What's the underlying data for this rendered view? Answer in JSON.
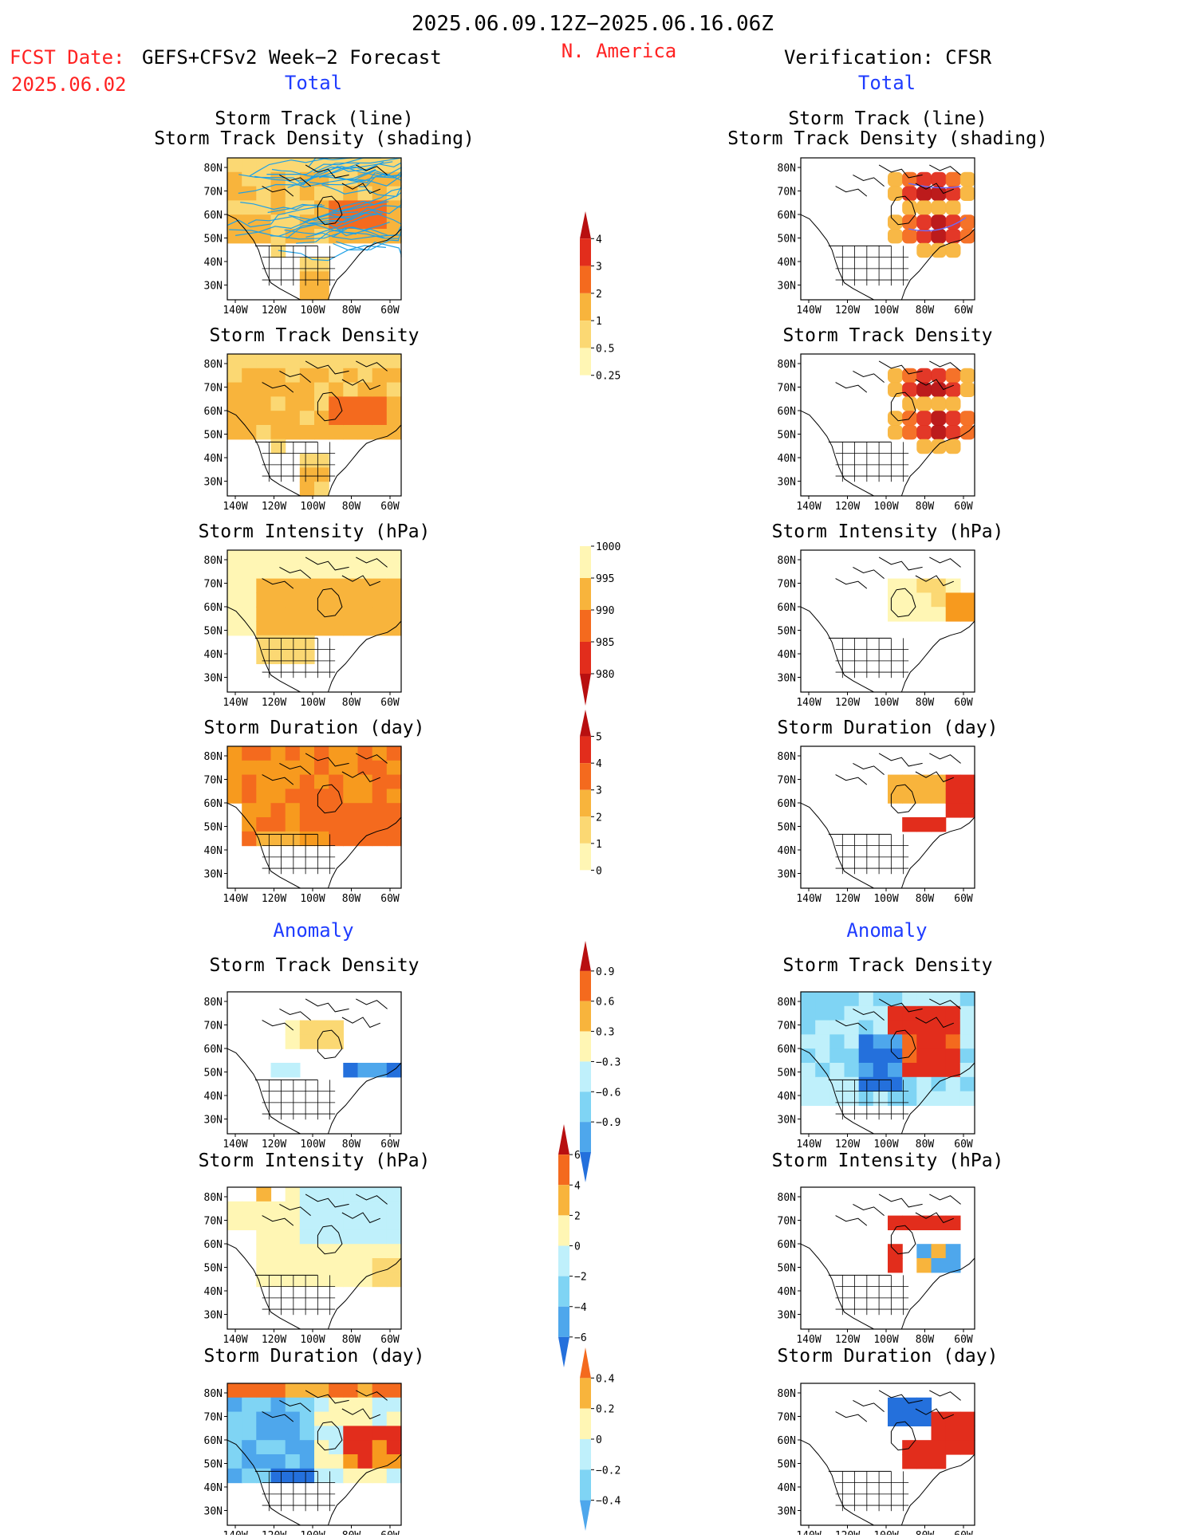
{
  "header": {
    "date_range": "2025.06.09.12Z−2025.06.16.06Z",
    "fcst_label": "FCST Date:",
    "fcst_date": "2025.06.02",
    "forecast_name": "GEFS+CFSv2 Week−2 Forecast",
    "region": "N. America",
    "verification": "Verification: CFSR"
  },
  "colors": {
    "red_text": "#ff2222",
    "blue_text": "#1f3cff",
    "track_line": "#1ea0e6",
    "warm": [
      "#fff6b4",
      "#fbd873",
      "#f8b43c",
      "#f79a1e",
      "#f46a1e",
      "#e22d1c",
      "#b80f10"
    ],
    "cool": [
      "#bff0fb",
      "#7fd4f4",
      "#4ea7ec",
      "#2470dc",
      "#1848b8"
    ]
  },
  "columns": [
    {
      "id": "forecast",
      "total_title": "Total",
      "anomaly_title": "Anomaly",
      "panels": [
        {
          "title1": "Storm Track (line)",
          "title2": "Storm Track Density (shading)",
          "kind": "track"
        },
        {
          "title1": "Storm Track Density",
          "title2": "",
          "kind": "density"
        },
        {
          "title1": "Storm Intensity (hPa)",
          "title2": "",
          "kind": "intensity"
        },
        {
          "title1": "Storm Duration (day)",
          "title2": "",
          "kind": "duration"
        },
        {
          "title1": "Storm Track Density",
          "title2": "",
          "kind": "anom_density"
        },
        {
          "title1": "Storm Intensity (hPa)",
          "title2": "",
          "kind": "anom_intensity"
        },
        {
          "title1": "Storm Duration (day)",
          "title2": "",
          "kind": "anom_duration"
        }
      ]
    },
    {
      "id": "verification",
      "total_title": "Total",
      "anomaly_title": "Anomaly",
      "panels": [
        {
          "title1": "Storm Track (line)",
          "title2": "Storm Track Density (shading)",
          "kind": "v_track"
        },
        {
          "title1": "Storm Track Density",
          "title2": "",
          "kind": "v_density"
        },
        {
          "title1": "Storm Intensity (hPa)",
          "title2": "",
          "kind": "v_intensity"
        },
        {
          "title1": "Storm Duration (day)",
          "title2": "",
          "kind": "v_duration"
        },
        {
          "title1": "Storm Track Density",
          "title2": "",
          "kind": "v_anom_density"
        },
        {
          "title1": "Storm Intensity (hPa)",
          "title2": "",
          "kind": "v_anom_intensity"
        },
        {
          "title1": "Storm Duration (day)",
          "title2": "",
          "kind": "v_anom_duration"
        }
      ]
    }
  ],
  "map_axes": {
    "lat_labels": [
      "80N",
      "70N",
      "60N",
      "50N",
      "40N",
      "30N"
    ],
    "lon_labels": [
      "140W",
      "120W",
      "100W",
      "80W",
      "60W"
    ]
  },
  "colorbars": [
    {
      "id": "density_total",
      "labels": [
        "4",
        "3",
        "2",
        "1",
        "0.5",
        "0.25"
      ],
      "scheme": "warm"
    },
    {
      "id": "intensity_total",
      "labels": [
        "1000",
        "995",
        "990",
        "985",
        "980"
      ],
      "scheme": "warm_rev"
    },
    {
      "id": "duration_total",
      "labels": [
        "5",
        "4",
        "3",
        "2",
        "1",
        "0"
      ],
      "scheme": "warm"
    },
    {
      "id": "density_anom",
      "labels": [
        "0.9",
        "0.6",
        "0.3",
        "−0.3",
        "−0.6",
        "−0.9"
      ],
      "scheme": "div"
    },
    {
      "id": "intensity_anom",
      "labels": [
        "6",
        "4",
        "2",
        "0",
        "−2",
        "−4",
        "−6"
      ],
      "scheme": "div"
    },
    {
      "id": "duration_anom",
      "labels": [
        "0.4",
        "0.2",
        "0",
        "−0.2",
        "−0.4"
      ],
      "scheme": "div"
    }
  ]
}
